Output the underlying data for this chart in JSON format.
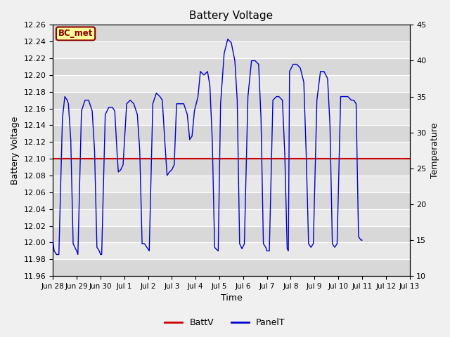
{
  "title": "Battery Voltage",
  "xlabel": "Time",
  "ylabel_left": "Battery Voltage",
  "ylabel_right": "Temperature",
  "ylim_left": [
    11.96,
    12.24
  ],
  "ylim_right": [
    10,
    45
  ],
  "battv_value": 12.1,
  "battv_color": "#cc0000",
  "panel_color": "#0000cc",
  "bg_color": "#e8e8e8",
  "annotation_text": "BC_met",
  "annotation_bg": "#ffff99",
  "annotation_border": "#8b0000",
  "legend_battv": "BattV",
  "legend_panelt": "PanelT",
  "x_tick_labels": [
    "Jun 28",
    "Jun 29",
    "Jun 30",
    "Jul 1",
    "Jul 2",
    "Jul 3",
    "Jul 4",
    "Jul 5",
    "Jul 6",
    "Jul 7",
    "Jul 8",
    "Jul 9",
    "Jul 10",
    "Jul 11",
    "Jul 12",
    "Jul 13"
  ],
  "panel_t_data": [
    [
      0.0,
      15.0
    ],
    [
      0.05,
      13.5
    ],
    [
      0.15,
      13.0
    ],
    [
      0.25,
      13.0
    ],
    [
      0.4,
      32.0
    ],
    [
      0.5,
      35.0
    ],
    [
      0.6,
      34.5
    ],
    [
      0.65,
      34.0
    ],
    [
      0.75,
      29.0
    ],
    [
      0.85,
      14.5
    ],
    [
      0.95,
      13.8
    ],
    [
      1.0,
      13.5
    ],
    [
      1.05,
      13.0
    ],
    [
      1.2,
      33.0
    ],
    [
      1.35,
      34.5
    ],
    [
      1.5,
      34.5
    ],
    [
      1.65,
      33.0
    ],
    [
      1.75,
      27.5
    ],
    [
      1.85,
      14.0
    ],
    [
      1.95,
      13.5
    ],
    [
      2.0,
      13.0
    ],
    [
      2.05,
      13.0
    ],
    [
      2.2,
      32.5
    ],
    [
      2.35,
      33.5
    ],
    [
      2.5,
      33.5
    ],
    [
      2.6,
      33.0
    ],
    [
      2.7,
      27.0
    ],
    [
      2.75,
      24.5
    ],
    [
      2.85,
      24.8
    ],
    [
      2.95,
      25.5
    ],
    [
      3.1,
      34.0
    ],
    [
      3.25,
      34.5
    ],
    [
      3.4,
      34.0
    ],
    [
      3.55,
      32.5
    ],
    [
      3.65,
      27.5
    ],
    [
      3.75,
      14.5
    ],
    [
      3.85,
      14.5
    ],
    [
      3.95,
      14.0
    ],
    [
      4.05,
      13.5
    ],
    [
      4.2,
      34.0
    ],
    [
      4.35,
      35.5
    ],
    [
      4.5,
      35.0
    ],
    [
      4.6,
      34.5
    ],
    [
      4.7,
      29.0
    ],
    [
      4.8,
      24.0
    ],
    [
      4.9,
      24.5
    ],
    [
      5.0,
      24.8
    ],
    [
      5.1,
      25.5
    ],
    [
      5.2,
      34.0
    ],
    [
      5.35,
      34.0
    ],
    [
      5.5,
      34.0
    ],
    [
      5.65,
      32.5
    ],
    [
      5.75,
      29.0
    ],
    [
      5.85,
      29.5
    ],
    [
      5.95,
      33.0
    ],
    [
      6.1,
      35.0
    ],
    [
      6.2,
      38.5
    ],
    [
      6.35,
      38.0
    ],
    [
      6.5,
      38.5
    ],
    [
      6.6,
      36.5
    ],
    [
      6.7,
      29.0
    ],
    [
      6.8,
      14.0
    ],
    [
      6.85,
      13.8
    ],
    [
      6.95,
      13.5
    ],
    [
      7.05,
      34.0
    ],
    [
      7.2,
      41.0
    ],
    [
      7.35,
      43.0
    ],
    [
      7.5,
      42.5
    ],
    [
      7.65,
      40.0
    ],
    [
      7.75,
      34.5
    ],
    [
      7.85,
      14.5
    ],
    [
      7.95,
      13.8
    ],
    [
      8.05,
      14.5
    ],
    [
      8.2,
      35.0
    ],
    [
      8.35,
      40.0
    ],
    [
      8.5,
      40.0
    ],
    [
      8.65,
      39.5
    ],
    [
      8.75,
      32.0
    ],
    [
      8.85,
      14.5
    ],
    [
      8.95,
      14.0
    ],
    [
      9.0,
      13.5
    ],
    [
      9.1,
      13.5
    ],
    [
      9.25,
      34.5
    ],
    [
      9.4,
      35.0
    ],
    [
      9.5,
      35.0
    ],
    [
      9.65,
      34.5
    ],
    [
      9.75,
      27.0
    ],
    [
      9.85,
      13.8
    ],
    [
      9.9,
      13.5
    ],
    [
      9.95,
      38.5
    ],
    [
      10.1,
      39.5
    ],
    [
      10.25,
      39.5
    ],
    [
      10.4,
      39.0
    ],
    [
      10.55,
      37.0
    ],
    [
      10.65,
      27.0
    ],
    [
      10.75,
      14.5
    ],
    [
      10.85,
      14.0
    ],
    [
      10.95,
      14.5
    ],
    [
      11.1,
      34.5
    ],
    [
      11.25,
      38.5
    ],
    [
      11.4,
      38.5
    ],
    [
      11.55,
      37.5
    ],
    [
      11.65,
      31.0
    ],
    [
      11.75,
      14.5
    ],
    [
      11.85,
      14.0
    ],
    [
      11.95,
      14.5
    ],
    [
      12.1,
      35.0
    ],
    [
      12.25,
      35.0
    ],
    [
      12.4,
      35.0
    ],
    [
      12.55,
      34.5
    ],
    [
      12.65,
      34.5
    ],
    [
      12.75,
      34.0
    ],
    [
      12.85,
      15.5
    ],
    [
      12.95,
      15.0
    ],
    [
      13.0,
      15.0
    ]
  ]
}
